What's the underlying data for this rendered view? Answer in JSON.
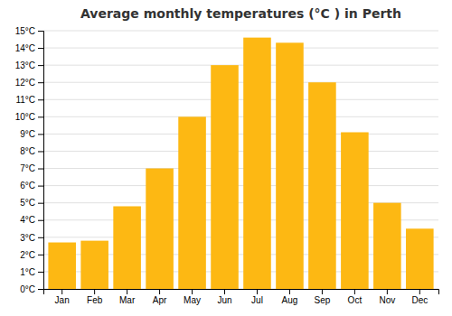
{
  "chart_data": {
    "type": "bar",
    "title": "Average monthly temperatures (°C ) in Perth",
    "categories": [
      "Jan",
      "Feb",
      "Mar",
      "Apr",
      "May",
      "Jun",
      "Jul",
      "Aug",
      "Sep",
      "Oct",
      "Nov",
      "Dec"
    ],
    "values": [
      2.7,
      2.8,
      4.8,
      7.0,
      10.0,
      13.0,
      14.6,
      14.3,
      12.0,
      9.1,
      5.0,
      3.5
    ],
    "color": "#FDB813",
    "ylim": [
      0,
      15
    ],
    "yticks": [
      {
        "value": 0,
        "label": "0°C"
      },
      {
        "value": 1,
        "label": "1°C"
      },
      {
        "value": 2,
        "label": "2°C"
      },
      {
        "value": 3,
        "label": "3°C"
      },
      {
        "value": 4,
        "label": "4°C"
      },
      {
        "value": 5,
        "label": "5°C"
      },
      {
        "value": 6,
        "label": "6°C"
      },
      {
        "value": 7,
        "label": "7°C"
      },
      {
        "value": 8,
        "label": "8°C"
      },
      {
        "value": 9,
        "label": "9°C"
      },
      {
        "value": 10,
        "label": "10°C"
      },
      {
        "value": 11,
        "label": "11°C"
      },
      {
        "value": 12,
        "label": "12°C"
      },
      {
        "value": 13,
        "label": "13°C"
      },
      {
        "value": 14,
        "label": "14°C"
      },
      {
        "value": 15,
        "label": "15°C"
      }
    ],
    "grid": true
  }
}
